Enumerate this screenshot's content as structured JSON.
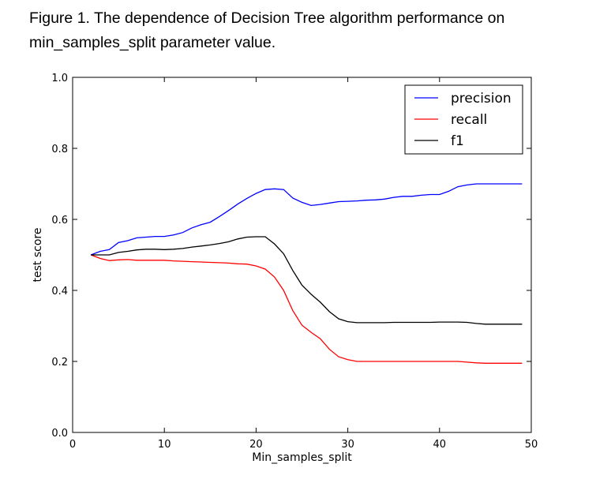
{
  "caption": "Figure 1. The dependence of Decision Tree algorithm performance on min_samples_split parameter value.",
  "chart_data": {
    "type": "line",
    "title": "",
    "xlabel": "Min_samples_split",
    "ylabel": "test score",
    "xlim": [
      0,
      50
    ],
    "ylim": [
      0.0,
      1.0
    ],
    "xticks": [
      "0",
      "10",
      "20",
      "30",
      "40",
      "50"
    ],
    "xtick_values": [
      0,
      10,
      20,
      30,
      40,
      50
    ],
    "yticks": [
      "0.0",
      "0.2",
      "0.4",
      "0.6",
      "0.8",
      "1.0"
    ],
    "ytick_values": [
      0.0,
      0.2,
      0.4,
      0.6,
      0.8,
      1.0
    ],
    "grid": false,
    "legend_position": "top-right",
    "x": [
      2,
      3,
      4,
      5,
      6,
      7,
      8,
      9,
      10,
      11,
      12,
      13,
      14,
      15,
      16,
      17,
      18,
      19,
      20,
      21,
      22,
      23,
      24,
      25,
      26,
      27,
      28,
      29,
      30,
      31,
      32,
      33,
      34,
      35,
      36,
      37,
      38,
      39,
      40,
      41,
      42,
      43,
      44,
      45,
      46,
      47,
      48,
      49
    ],
    "series": [
      {
        "name": "precision",
        "color": "#0000ff",
        "values": [
          0.5,
          0.51,
          0.515,
          0.535,
          0.54,
          0.548,
          0.55,
          0.552,
          0.552,
          0.556,
          0.563,
          0.576,
          0.585,
          0.592,
          0.608,
          0.625,
          0.643,
          0.659,
          0.673,
          0.684,
          0.686,
          0.684,
          0.66,
          0.648,
          0.639,
          0.642,
          0.646,
          0.65,
          0.651,
          0.652,
          0.654,
          0.655,
          0.657,
          0.662,
          0.665,
          0.665,
          0.668,
          0.67,
          0.67,
          0.679,
          0.692,
          0.697,
          0.7,
          0.7,
          0.7,
          0.7,
          0.7,
          0.7
        ]
      },
      {
        "name": "recall",
        "color": "#ff0000",
        "values": [
          0.5,
          0.49,
          0.484,
          0.486,
          0.487,
          0.485,
          0.485,
          0.485,
          0.485,
          0.483,
          0.482,
          0.481,
          0.48,
          0.479,
          0.478,
          0.477,
          0.475,
          0.474,
          0.469,
          0.46,
          0.438,
          0.4,
          0.343,
          0.302,
          0.282,
          0.264,
          0.234,
          0.213,
          0.205,
          0.2,
          0.2,
          0.2,
          0.2,
          0.2,
          0.2,
          0.2,
          0.2,
          0.2,
          0.2,
          0.2,
          0.2,
          0.198,
          0.196,
          0.195,
          0.195,
          0.195,
          0.195,
          0.195
        ]
      },
      {
        "name": "f1",
        "color": "#000000",
        "values": [
          0.5,
          0.5,
          0.5,
          0.507,
          0.51,
          0.514,
          0.516,
          0.516,
          0.515,
          0.516,
          0.518,
          0.522,
          0.525,
          0.528,
          0.532,
          0.537,
          0.545,
          0.55,
          0.551,
          0.551,
          0.531,
          0.503,
          0.456,
          0.415,
          0.389,
          0.367,
          0.34,
          0.32,
          0.312,
          0.309,
          0.309,
          0.309,
          0.309,
          0.31,
          0.31,
          0.31,
          0.31,
          0.31,
          0.311,
          0.311,
          0.311,
          0.31,
          0.307,
          0.305,
          0.305,
          0.305,
          0.305,
          0.305
        ]
      }
    ]
  }
}
